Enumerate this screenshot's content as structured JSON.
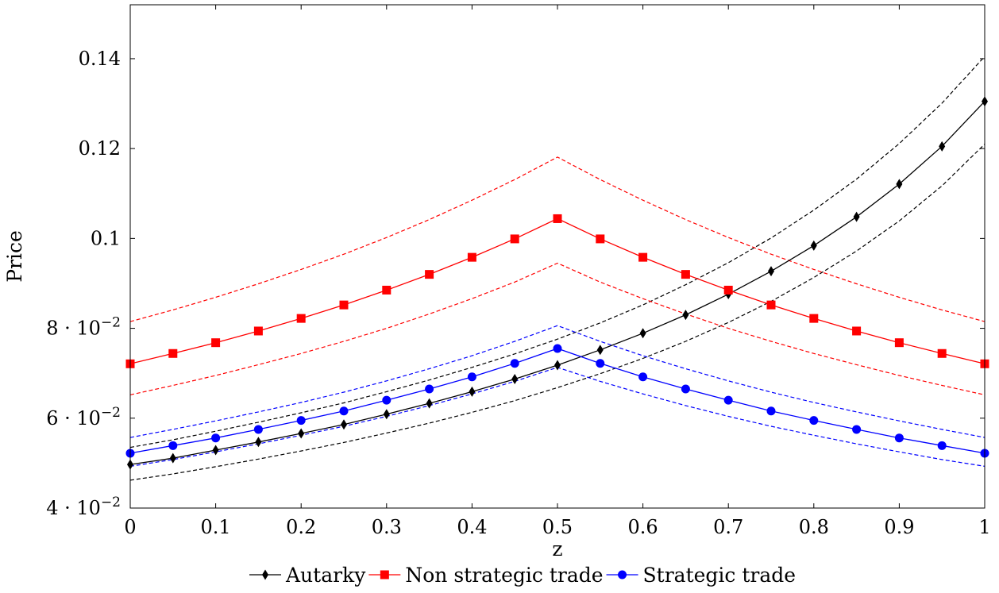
{
  "chart_data": {
    "type": "line",
    "xlabel": "z",
    "ylabel": "Price",
    "xlim": [
      0,
      1
    ],
    "ylim": [
      0.04,
      0.152
    ],
    "xticks": [
      0,
      0.1,
      0.2,
      0.3,
      0.4,
      0.5,
      0.6,
      0.7,
      0.8,
      0.9,
      1
    ],
    "xtick_labels": [
      "0",
      "0.1",
      "0.2",
      "0.3",
      "0.4",
      "0.5",
      "0.6",
      "0.7",
      "0.8",
      "0.9",
      "1"
    ],
    "yticks": [
      0.04,
      0.06,
      0.08,
      0.1,
      0.12,
      0.14
    ],
    "ytick_labels": [
      {
        "mant": "4 · 10",
        "exp": "−2"
      },
      {
        "mant": "6 · 10",
        "exp": "−2"
      },
      {
        "mant": "8 · 10",
        "exp": "−2"
      },
      {
        "mant": "0.1",
        "exp": ""
      },
      {
        "mant": "0.12",
        "exp": ""
      },
      {
        "mant": "0.14",
        "exp": ""
      }
    ],
    "grid": false,
    "legend_position": "bottom",
    "x": [
      0,
      0.05,
      0.1,
      0.15,
      0.2,
      0.25,
      0.3,
      0.35,
      0.4,
      0.45,
      0.5,
      0.55,
      0.6,
      0.65,
      0.7,
      0.75,
      0.8,
      0.85,
      0.9,
      0.95,
      1
    ],
    "series": [
      {
        "name": "Autarky",
        "color": "#000000",
        "marker": "diamond",
        "values": [
          0.0497,
          0.0511,
          0.0529,
          0.0547,
          0.0566,
          0.0586,
          0.0609,
          0.0633,
          0.0659,
          0.0687,
          0.0718,
          0.0752,
          0.0789,
          0.083,
          0.0876,
          0.0927,
          0.0984,
          0.1048,
          0.1121,
          0.1205,
          0.1305
        ],
        "band_upper": [
          0.0535,
          0.0552,
          0.0571,
          0.0591,
          0.0612,
          0.0634,
          0.0659,
          0.0685,
          0.0713,
          0.0743,
          0.0776,
          0.0812,
          0.0852,
          0.0897,
          0.0946,
          0.1001,
          0.1063,
          0.1132,
          0.1211,
          0.1301,
          0.1405
        ],
        "band_lower": [
          0.0462,
          0.0476,
          0.0492,
          0.0509,
          0.0527,
          0.0546,
          0.0567,
          0.0589,
          0.0613,
          0.0639,
          0.0668,
          0.0699,
          0.0733,
          0.0771,
          0.0813,
          0.086,
          0.0913,
          0.0972,
          0.1039,
          0.1117,
          0.121
        ]
      },
      {
        "name": "Non strategic trade",
        "color": "#ff0000",
        "marker": "square",
        "values": [
          0.0721,
          0.0744,
          0.0768,
          0.0794,
          0.0822,
          0.0852,
          0.0885,
          0.092,
          0.0958,
          0.0999,
          0.1044,
          0.0999,
          0.0958,
          0.092,
          0.0885,
          0.0852,
          0.0822,
          0.0794,
          0.0768,
          0.0744,
          0.0721
        ],
        "band_upper": [
          0.0815,
          0.0841,
          0.0869,
          0.0899,
          0.0931,
          0.0965,
          0.1002,
          0.1042,
          0.1085,
          0.1131,
          0.1181,
          0.1131,
          0.1085,
          0.1042,
          0.1002,
          0.0965,
          0.0931,
          0.0899,
          0.0869,
          0.0841,
          0.0815
        ],
        "band_lower": [
          0.0652,
          0.0673,
          0.0695,
          0.0719,
          0.0744,
          0.0771,
          0.08,
          0.0832,
          0.0866,
          0.0903,
          0.0945,
          0.0903,
          0.0866,
          0.0832,
          0.08,
          0.0771,
          0.0744,
          0.0719,
          0.0695,
          0.0673,
          0.0652
        ]
      },
      {
        "name": "Strategic trade",
        "color": "#0000ff",
        "marker": "circle",
        "values": [
          0.0522,
          0.0539,
          0.0556,
          0.0575,
          0.0595,
          0.0616,
          0.064,
          0.0665,
          0.0692,
          0.0722,
          0.0755,
          0.0722,
          0.0692,
          0.0665,
          0.064,
          0.0616,
          0.0595,
          0.0575,
          0.0556,
          0.0539,
          0.0522
        ],
        "band_upper": [
          0.0557,
          0.0575,
          0.0594,
          0.0614,
          0.0635,
          0.0658,
          0.0683,
          0.071,
          0.0739,
          0.0771,
          0.0806,
          0.0771,
          0.0739,
          0.071,
          0.0683,
          0.0658,
          0.0635,
          0.0614,
          0.0594,
          0.0575,
          0.0557
        ],
        "band_lower": [
          0.0493,
          0.0508,
          0.0525,
          0.0543,
          0.0562,
          0.0582,
          0.0604,
          0.0628,
          0.0654,
          0.0682,
          0.0713,
          0.0682,
          0.0654,
          0.0628,
          0.0604,
          0.0582,
          0.0562,
          0.0543,
          0.0525,
          0.0508,
          0.0493
        ]
      }
    ]
  }
}
